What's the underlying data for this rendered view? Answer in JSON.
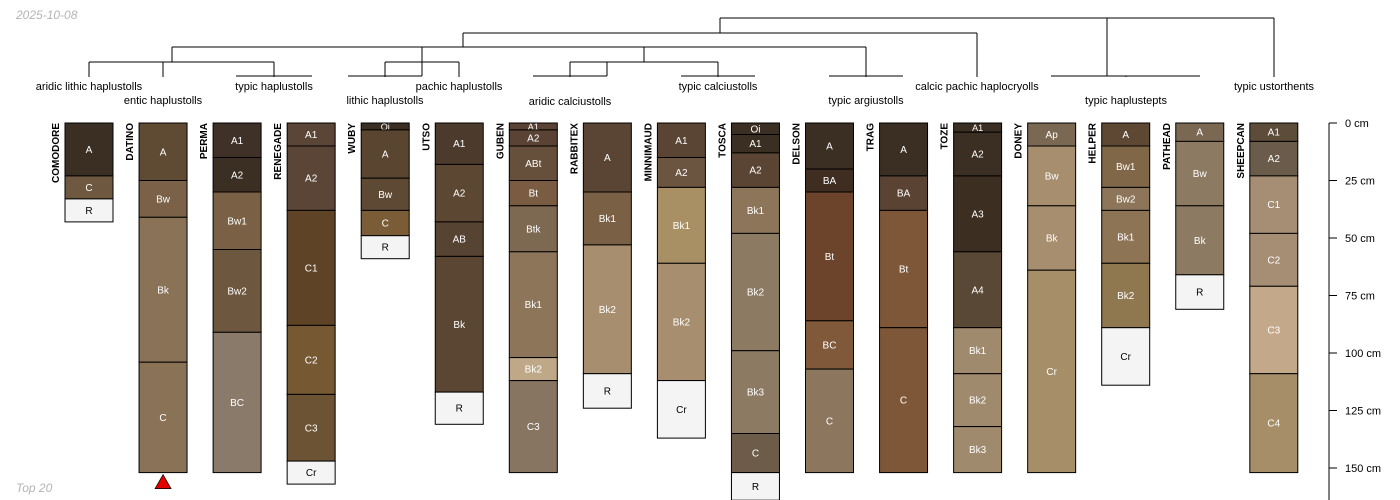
{
  "header": {
    "date": "2025-10-08"
  },
  "footer": {
    "label": "Top 20"
  },
  "depth_axis": {
    "unit": "cm",
    "ticks": [
      0,
      25,
      50,
      75,
      100,
      125,
      150
    ]
  },
  "taxa": [
    {
      "id": "aridic_lithic_haplustolls",
      "label": "aridic lithic haplustolls"
    },
    {
      "id": "entic_haplustolls",
      "label": "entic haplustolls"
    },
    {
      "id": "typic_haplustolls",
      "label": "typic haplustolls"
    },
    {
      "id": "lithic_haplustolls",
      "label": "lithic haplustolls"
    },
    {
      "id": "pachic_haplustolls",
      "label": "pachic haplustolls"
    },
    {
      "id": "aridic_calciustolls",
      "label": "aridic calciustolls"
    },
    {
      "id": "typic_calciustolls",
      "label": "typic calciustolls"
    },
    {
      "id": "typic_argiustolls",
      "label": "typic argiustolls"
    },
    {
      "id": "calcic_pachic_haplocryolls",
      "label": "calcic pachic haplocryolls"
    },
    {
      "id": "typic_haplustepts",
      "label": "typic haplustepts"
    },
    {
      "id": "typic_ustorthents",
      "label": "typic ustorthents"
    }
  ],
  "profiles": [
    {
      "name": "COMODORE",
      "horizons": [
        {
          "name": "A",
          "top": 0,
          "bottom": 23,
          "color": "#3b2f24"
        },
        {
          "name": "C",
          "top": 23,
          "bottom": 33,
          "color": "#6e5840"
        },
        {
          "name": "R",
          "top": 33,
          "bottom": 43,
          "color": "#f4f4f4"
        }
      ]
    },
    {
      "name": "DATINO",
      "marker": true,
      "horizons": [
        {
          "name": "A",
          "top": 0,
          "bottom": 25,
          "color": "#5f4a34"
        },
        {
          "name": "Bw",
          "top": 25,
          "bottom": 41,
          "color": "#7a6148"
        },
        {
          "name": "Bk",
          "top": 41,
          "bottom": 104,
          "color": "#8a7257"
        },
        {
          "name": "C",
          "top": 104,
          "bottom": 152,
          "color": "#8a7257"
        }
      ]
    },
    {
      "name": "PERMA",
      "horizons": [
        {
          "name": "A1",
          "top": 0,
          "bottom": 15,
          "color": "#3f3127"
        },
        {
          "name": "A2",
          "top": 15,
          "bottom": 30,
          "color": "#3b2e22"
        },
        {
          "name": "Bw1",
          "top": 30,
          "bottom": 55,
          "color": "#7a6145"
        },
        {
          "name": "Bw2",
          "top": 55,
          "bottom": 91,
          "color": "#6d573f"
        },
        {
          "name": "BC",
          "top": 91,
          "bottom": 152,
          "color": "#8a7a69"
        }
      ]
    },
    {
      "name": "RENEGADE",
      "horizons": [
        {
          "name": "A1",
          "top": 0,
          "bottom": 10,
          "color": "#5a4536"
        },
        {
          "name": "A2",
          "top": 10,
          "bottom": 38,
          "color": "#5a4536"
        },
        {
          "name": "C1",
          "top": 38,
          "bottom": 88,
          "color": "#5e4327"
        },
        {
          "name": "C2",
          "top": 88,
          "bottom": 118,
          "color": "#765833"
        },
        {
          "name": "C3",
          "top": 118,
          "bottom": 147,
          "color": "#6b5333"
        },
        {
          "name": "Cr",
          "top": 147,
          "bottom": 157,
          "color": "#f4f4f4"
        }
      ]
    },
    {
      "name": "WUBY",
      "horizons": [
        {
          "name": "Oi",
          "top": 0,
          "bottom": 3,
          "color": "#3b2e22"
        },
        {
          "name": "A",
          "top": 3,
          "bottom": 24,
          "color": "#5a4530"
        },
        {
          "name": "Bw",
          "top": 24,
          "bottom": 38,
          "color": "#5e4a34"
        },
        {
          "name": "C",
          "top": 38,
          "bottom": 49,
          "color": "#7a5c37"
        },
        {
          "name": "R",
          "top": 49,
          "bottom": 59,
          "color": "#f4f4f4"
        }
      ]
    },
    {
      "name": "UTSO",
      "horizons": [
        {
          "name": "A1",
          "top": 0,
          "bottom": 18,
          "color": "#4c3b2c"
        },
        {
          "name": "A2",
          "top": 18,
          "bottom": 43,
          "color": "#5c4733"
        },
        {
          "name": "AB",
          "top": 43,
          "bottom": 58,
          "color": "#574332"
        },
        {
          "name": "Bk",
          "top": 58,
          "bottom": 117,
          "color": "#5a4632"
        },
        {
          "name": "R",
          "top": 117,
          "bottom": 131,
          "color": "#f4f4f4"
        }
      ]
    },
    {
      "name": "GUBEN",
      "horizons": [
        {
          "name": "A1",
          "top": 0,
          "bottom": 3,
          "color": "#5a4334"
        },
        {
          "name": "A2",
          "top": 3,
          "bottom": 10,
          "color": "#5a4334"
        },
        {
          "name": "ABt",
          "top": 10,
          "bottom": 25,
          "color": "#67503b"
        },
        {
          "name": "Bt",
          "top": 25,
          "bottom": 36,
          "color": "#7a5c42"
        },
        {
          "name": "Btk",
          "top": 36,
          "bottom": 56,
          "color": "#7d6852"
        },
        {
          "name": "Bk1",
          "top": 56,
          "bottom": 102,
          "color": "#8c7559"
        },
        {
          "name": "Bk2",
          "top": 102,
          "bottom": 112,
          "color": "#bfa888"
        },
        {
          "name": "C3",
          "top": 112,
          "bottom": 152,
          "color": "#877561"
        }
      ]
    },
    {
      "name": "RABBITEX",
      "horizons": [
        {
          "name": "A",
          "top": 0,
          "bottom": 30,
          "color": "#5a4534"
        },
        {
          "name": "Bk1",
          "top": 30,
          "bottom": 53,
          "color": "#7a6145"
        },
        {
          "name": "Bk2",
          "top": 53,
          "bottom": 109,
          "color": "#a68e6f"
        },
        {
          "name": "R",
          "top": 109,
          "bottom": 124,
          "color": "#f4f4f4"
        }
      ]
    },
    {
      "name": "MINNIMAUD",
      "horizons": [
        {
          "name": "A1",
          "top": 0,
          "bottom": 15,
          "color": "#5a4534"
        },
        {
          "name": "A2",
          "top": 15,
          "bottom": 28,
          "color": "#6b5440"
        },
        {
          "name": "Bk1",
          "top": 28,
          "bottom": 61,
          "color": "#a89064"
        },
        {
          "name": "Bk2",
          "top": 61,
          "bottom": 112,
          "color": "#a68e6e"
        },
        {
          "name": "Cr",
          "top": 112,
          "bottom": 137,
          "color": "#f4f4f4"
        }
      ]
    },
    {
      "name": "TOSCA",
      "horizons": [
        {
          "name": "Oi",
          "top": 0,
          "bottom": 5,
          "color": "#3b2e22"
        },
        {
          "name": "A1",
          "top": 5,
          "bottom": 13,
          "color": "#3b2e22"
        },
        {
          "name": "A2",
          "top": 13,
          "bottom": 28,
          "color": "#5a4534"
        },
        {
          "name": "Bk1",
          "top": 28,
          "bottom": 48,
          "color": "#8c7559"
        },
        {
          "name": "Bk2",
          "top": 48,
          "bottom": 99,
          "color": "#8c7a63"
        },
        {
          "name": "Bk3",
          "top": 99,
          "bottom": 135,
          "color": "#8c7a63"
        },
        {
          "name": "C",
          "top": 135,
          "bottom": 152,
          "color": "#6e5c4b"
        },
        {
          "name": "R",
          "top": 152,
          "bottom": 164,
          "color": "#f4f4f4"
        }
      ]
    },
    {
      "name": "DELSON",
      "horizons": [
        {
          "name": "A",
          "top": 0,
          "bottom": 20,
          "color": "#3b2e22"
        },
        {
          "name": "BA",
          "top": 20,
          "bottom": 30,
          "color": "#3e2d20"
        },
        {
          "name": "Bt",
          "top": 30,
          "bottom": 86,
          "color": "#6b442b"
        },
        {
          "name": "BC",
          "top": 86,
          "bottom": 107,
          "color": "#80593a"
        },
        {
          "name": "C",
          "top": 107,
          "bottom": 152,
          "color": "#8c765e"
        }
      ]
    },
    {
      "name": "TRAG",
      "horizons": [
        {
          "name": "A",
          "top": 0,
          "bottom": 23,
          "color": "#3b2e22"
        },
        {
          "name": "BA",
          "top": 23,
          "bottom": 38,
          "color": "#5a4333"
        },
        {
          "name": "Bt",
          "top": 38,
          "bottom": 89,
          "color": "#7e5738"
        },
        {
          "name": "C",
          "top": 89,
          "bottom": 152,
          "color": "#7e5738"
        }
      ]
    },
    {
      "name": "TOZE",
      "horizons": [
        {
          "name": "A1",
          "top": 0,
          "bottom": 4,
          "color": "#3b2e22"
        },
        {
          "name": "A2",
          "top": 4,
          "bottom": 23,
          "color": "#3b2e22"
        },
        {
          "name": "A3",
          "top": 23,
          "bottom": 56,
          "color": "#3d2e22"
        },
        {
          "name": "A4",
          "top": 56,
          "bottom": 89,
          "color": "#5a4836"
        },
        {
          "name": "Bk1",
          "top": 89,
          "bottom": 109,
          "color": "#a08a6e"
        },
        {
          "name": "Bk2",
          "top": 109,
          "bottom": 132,
          "color": "#a08a6e"
        },
        {
          "name": "Bk3",
          "top": 132,
          "bottom": 152,
          "color": "#a08a6e"
        }
      ]
    },
    {
      "name": "DONEY",
      "horizons": [
        {
          "name": "Ap",
          "top": 0,
          "bottom": 10,
          "color": "#7a6853"
        },
        {
          "name": "Bw",
          "top": 10,
          "bottom": 36,
          "color": "#a68e6e"
        },
        {
          "name": "Bk",
          "top": 36,
          "bottom": 64,
          "color": "#a68e6e"
        },
        {
          "name": "Cr",
          "top": 64,
          "bottom": 152,
          "color": "#a68e68"
        }
      ]
    },
    {
      "name": "HELPER",
      "horizons": [
        {
          "name": "A",
          "top": 0,
          "bottom": 10,
          "color": "#5e4834"
        },
        {
          "name": "Bw1",
          "top": 10,
          "bottom": 28,
          "color": "#806747"
        },
        {
          "name": "Bw2",
          "top": 28,
          "bottom": 38,
          "color": "#8c7559"
        },
        {
          "name": "Bk1",
          "top": 38,
          "bottom": 61,
          "color": "#8c7455"
        },
        {
          "name": "Bk2",
          "top": 61,
          "bottom": 89,
          "color": "#8f774f"
        },
        {
          "name": "Cr",
          "top": 89,
          "bottom": 114,
          "color": "#f4f4f4"
        }
      ]
    },
    {
      "name": "PATHEAD",
      "horizons": [
        {
          "name": "A",
          "top": 0,
          "bottom": 8,
          "color": "#7a6853"
        },
        {
          "name": "Bw",
          "top": 8,
          "bottom": 36,
          "color": "#8c7a63"
        },
        {
          "name": "Bk",
          "top": 36,
          "bottom": 66,
          "color": "#8c7a63"
        },
        {
          "name": "R",
          "top": 66,
          "bottom": 81,
          "color": "#f4f4f4"
        }
      ]
    },
    {
      "name": "SHEEPCAN",
      "horizons": [
        {
          "name": "A1",
          "top": 0,
          "bottom": 8,
          "color": "#5e4c3b"
        },
        {
          "name": "A2",
          "top": 8,
          "bottom": 23,
          "color": "#6b5b4a"
        },
        {
          "name": "C1",
          "top": 23,
          "bottom": 48,
          "color": "#a68e75"
        },
        {
          "name": "C2",
          "top": 48,
          "bottom": 71,
          "color": "#a68e75"
        },
        {
          "name": "C3",
          "top": 71,
          "bottom": 109,
          "color": "#c4a88a"
        },
        {
          "name": "C4",
          "top": 109,
          "bottom": 152,
          "color": "#a68e68"
        }
      ]
    }
  ]
}
